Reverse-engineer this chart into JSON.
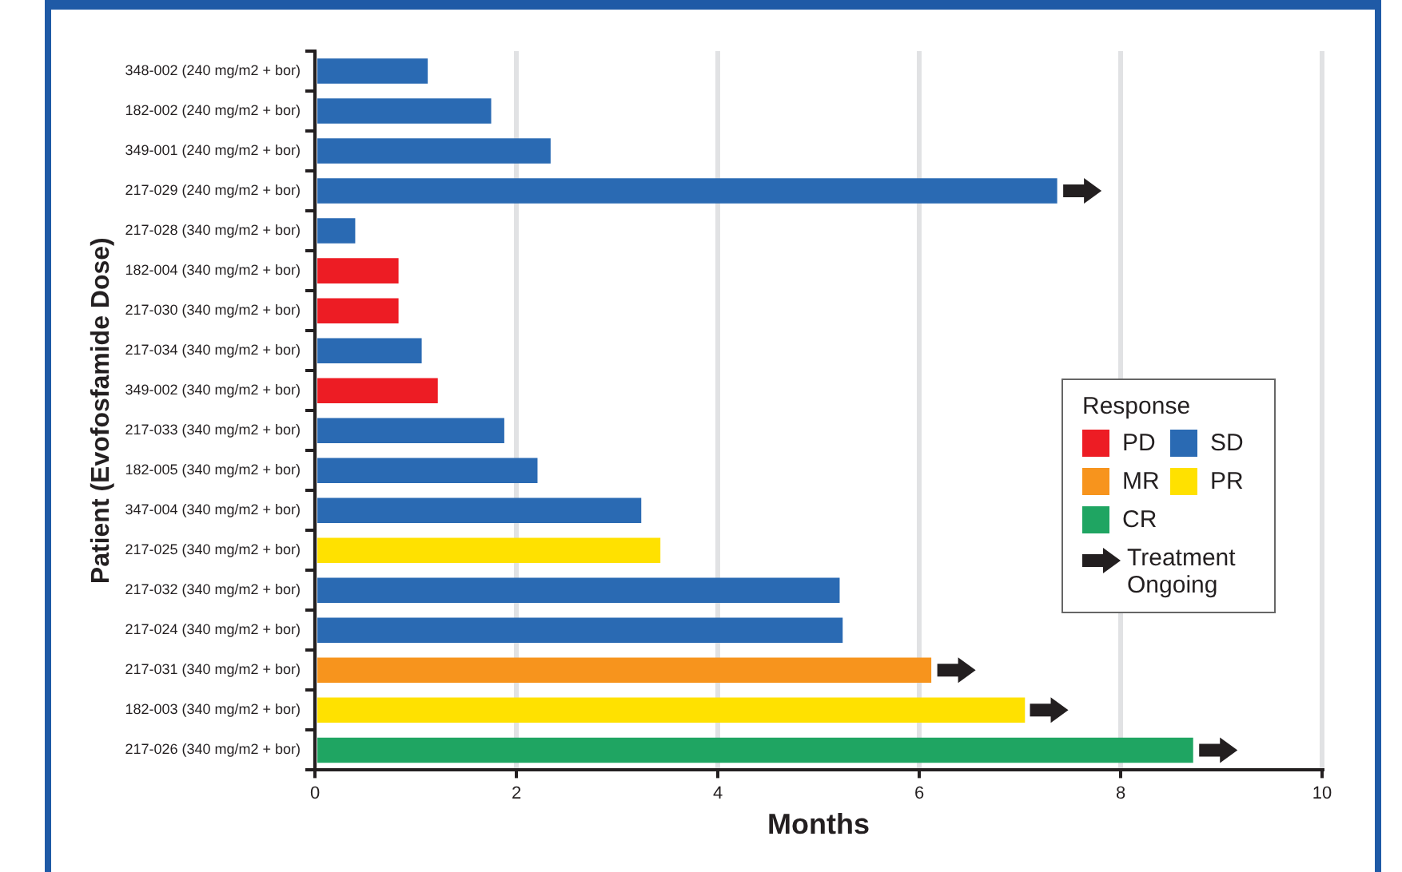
{
  "chart_data": {
    "type": "bar",
    "orientation": "horizontal",
    "xlabel": "Months",
    "ylabel": "Patient (Evofosfamide Dose)",
    "legend_title": "Response",
    "legend": "right",
    "categories": [
      "348-002 (240 mg/m2 + bor)",
      "182-002 (240 mg/m2 + bor)",
      "349-001 (240 mg/m2 + bor)",
      "217-029 (240 mg/m2 + bor)",
      "217-028 (340 mg/m2 + bor)",
      "182-004 (340 mg/m2 + bor)",
      "217-030 (340 mg/m2 + bor)",
      "217-034 (340 mg/m2 + bor)",
      "349-002 (340 mg/m2 + bor)",
      "217-033 (340 mg/m2 + bor)",
      "182-005 (340 mg/m2 + bor)",
      "347-004 (340 mg/m2 + bor)",
      "217-025 (340 mg/m2 + bor)",
      "217-032 (340 mg/m2 + bor)",
      "217-024 (340 mg/m2 + bor)",
      "217-031 (340 mg/m2 + bor)",
      "182-003 (340 mg/m2 + bor)",
      "217-026 (340 mg/m2 + bor)"
    ],
    "series": [
      {
        "name": "PD",
        "color": "#ed1c24",
        "values": [
          null,
          null,
          null,
          null,
          null,
          0.83,
          0.83,
          null,
          1.22,
          null,
          null,
          null,
          null,
          null,
          null,
          null,
          null,
          null
        ]
      },
      {
        "name": "SD",
        "color": "#2a6ab3",
        "values": [
          1.12,
          1.75,
          2.34,
          7.37,
          0.4,
          null,
          null,
          1.06,
          null,
          1.88,
          2.21,
          3.24,
          null,
          5.21,
          5.24,
          null,
          null,
          null
        ]
      },
      {
        "name": "MR",
        "color": "#f7941d",
        "values": [
          null,
          null,
          null,
          null,
          null,
          null,
          null,
          null,
          null,
          null,
          null,
          null,
          null,
          null,
          null,
          6.12,
          null,
          null
        ]
      },
      {
        "name": "PR",
        "color": "#ffe100",
        "values": [
          null,
          null,
          null,
          null,
          null,
          null,
          null,
          null,
          null,
          null,
          null,
          null,
          3.43,
          null,
          null,
          null,
          7.05,
          null
        ]
      },
      {
        "name": "CR",
        "color": "#1fa562",
        "values": [
          null,
          null,
          null,
          null,
          null,
          null,
          null,
          null,
          null,
          null,
          null,
          null,
          null,
          null,
          null,
          null,
          null,
          8.72
        ]
      },
      {
        "name": "Treatment Ongoing",
        "type": "scatter",
        "color": "#231f20",
        "values": [
          null,
          null,
          null,
          7.62,
          null,
          null,
          null,
          null,
          null,
          null,
          null,
          null,
          null,
          null,
          null,
          6.37,
          7.29,
          8.97
        ]
      }
    ],
    "xlim": [
      0,
      10
    ],
    "xticks": [
      0,
      2,
      4,
      6,
      8,
      10
    ],
    "grid": "x"
  }
}
